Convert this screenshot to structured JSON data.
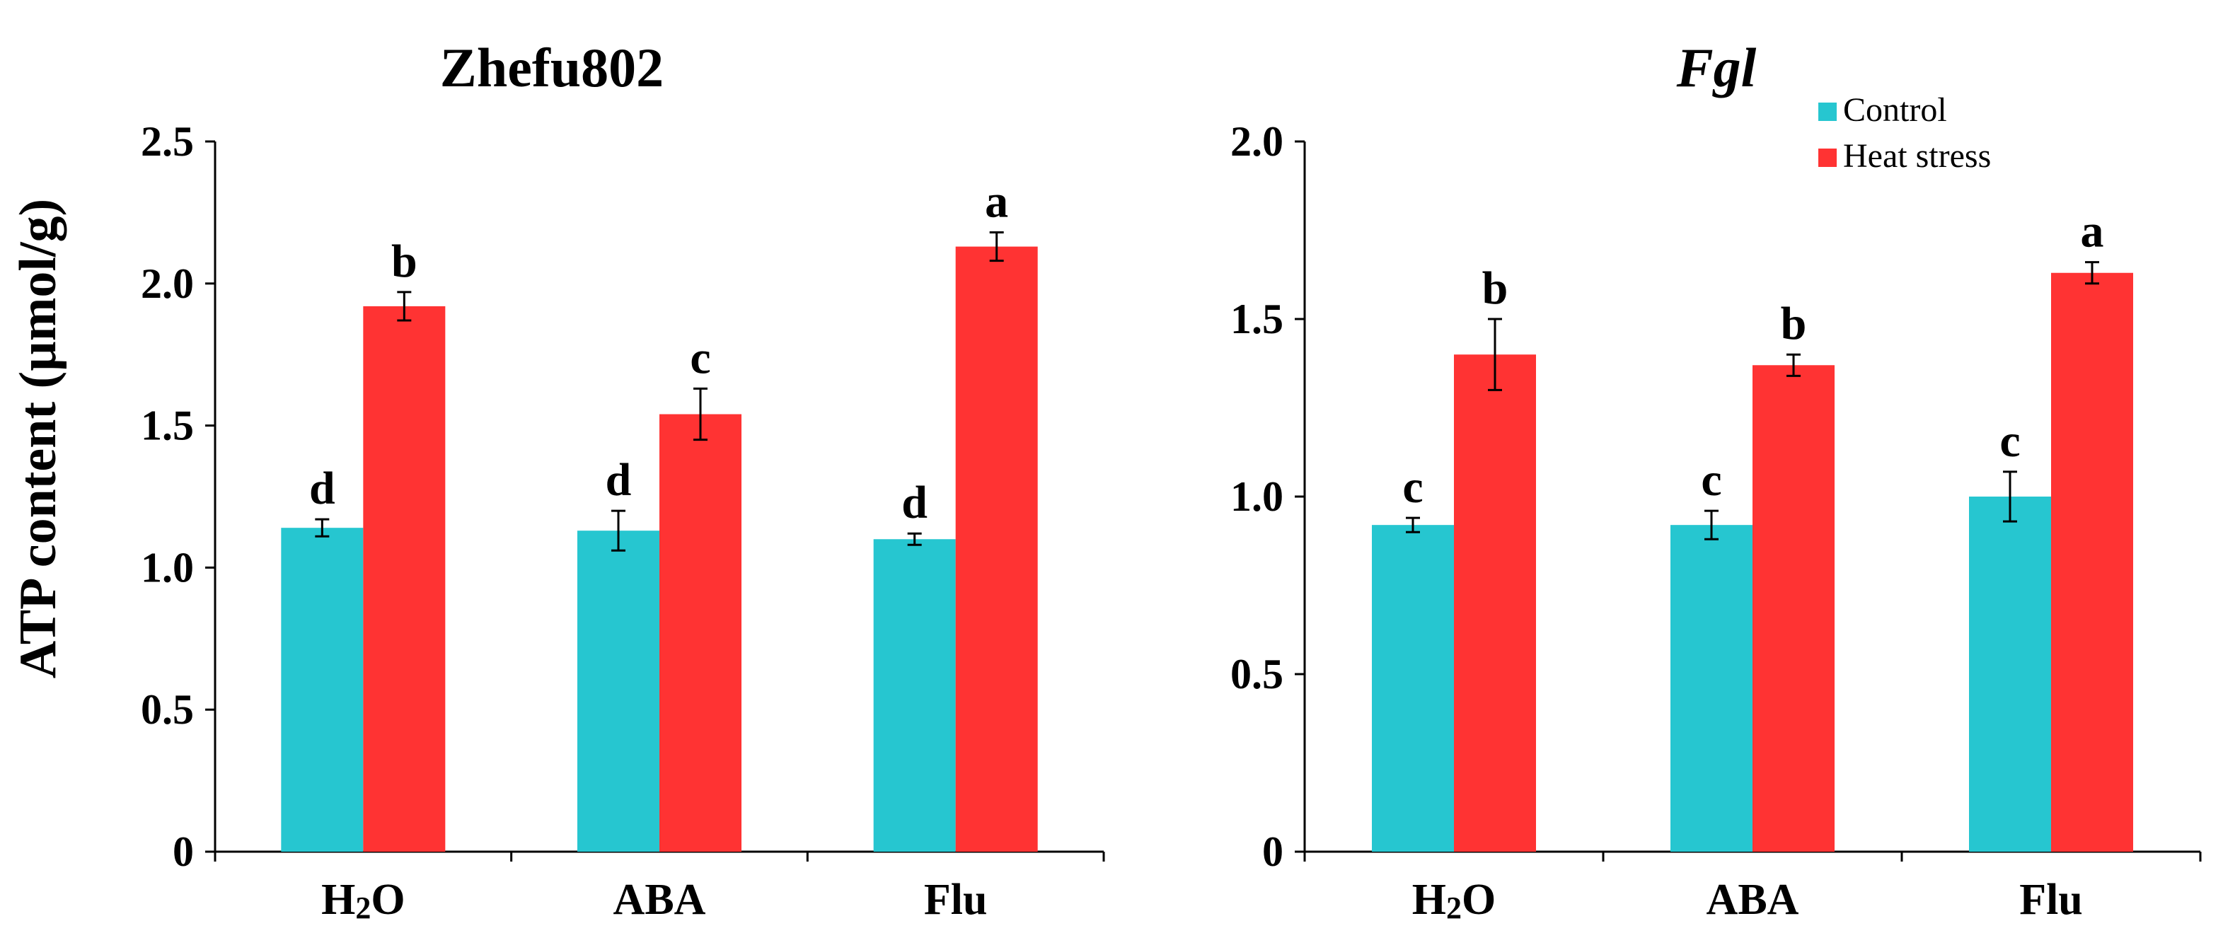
{
  "colors": {
    "control": "#26c6d0",
    "heat": "#ff3333"
  },
  "ylabel": "ATP content (µmol/g)",
  "legend": [
    "Control",
    "Heat stress"
  ],
  "chart_data": [
    {
      "type": "bar",
      "title": "Zhefu802",
      "title_italic": false,
      "categories": [
        "H2O",
        "ABA",
        "Flu"
      ],
      "ylim": [
        0,
        2.5
      ],
      "yticks": [
        "0",
        "0.5",
        "1.0",
        "1.5",
        "2.0",
        "2.5"
      ],
      "ytick_values": [
        0,
        0.5,
        1.0,
        1.5,
        2.0,
        2.5
      ],
      "series": [
        {
          "name": "Control",
          "values": [
            1.14,
            1.13,
            1.1
          ],
          "errors": [
            0.03,
            0.07,
            0.02
          ],
          "letters": [
            "d",
            "d",
            "d"
          ]
        },
        {
          "name": "Heat stress",
          "values": [
            1.92,
            1.54,
            2.13
          ],
          "errors": [
            0.05,
            0.09,
            0.05
          ],
          "letters": [
            "b",
            "c",
            "a"
          ]
        }
      ]
    },
    {
      "type": "bar",
      "title": "Fgl",
      "title_italic": true,
      "categories": [
        "H2O",
        "ABA",
        "Flu"
      ],
      "ylim": [
        0,
        2.0
      ],
      "yticks": [
        "0",
        "0.5",
        "1.0",
        "1.5",
        "2.0"
      ],
      "ytick_values": [
        0,
        0.5,
        1.0,
        1.5,
        2.0
      ],
      "series": [
        {
          "name": "Control",
          "values": [
            0.92,
            0.92,
            1.0
          ],
          "errors": [
            0.02,
            0.04,
            0.07
          ],
          "letters": [
            "c",
            "c",
            "c"
          ]
        },
        {
          "name": "Heat stress",
          "values": [
            1.4,
            1.37,
            1.63
          ],
          "errors": [
            0.1,
            0.03,
            0.03
          ],
          "letters": [
            "b",
            "b",
            "a"
          ]
        }
      ]
    }
  ]
}
